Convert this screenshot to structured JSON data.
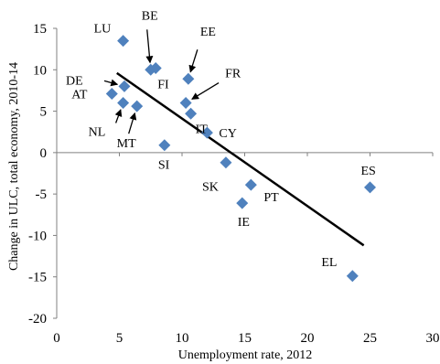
{
  "chart_data": {
    "type": "scatter",
    "title": "",
    "xlabel": "Unemployment rate, 2012",
    "ylabel": "Change in ULC, total economy, 2010-14",
    "xlim": [
      0,
      30
    ],
    "ylim": [
      -20,
      15
    ],
    "x_ticks": [
      0,
      5,
      10,
      15,
      20,
      25,
      30
    ],
    "y_ticks": [
      15,
      10,
      5,
      0,
      -5,
      -10,
      -15,
      -20
    ],
    "grid": false,
    "legend": "none",
    "marker_color": "#4f81bd",
    "trendline_color": "#000000",
    "points": [
      {
        "label": "LU",
        "x": 5.3,
        "y": 13.5
      },
      {
        "label": "BE",
        "x": 7.5,
        "y": 10.0
      },
      {
        "label": "FI",
        "x": 7.9,
        "y": 10.2
      },
      {
        "label": "EE",
        "x": 10.5,
        "y": 8.9
      },
      {
        "label": "DE",
        "x": 5.4,
        "y": 8.0
      },
      {
        "label": "AT",
        "x": 4.4,
        "y": 7.1
      },
      {
        "label": "FR",
        "x": 10.3,
        "y": 6.0
      },
      {
        "label": "NL",
        "x": 5.3,
        "y": 6.0
      },
      {
        "label": "MT",
        "x": 6.4,
        "y": 5.6
      },
      {
        "label": "IT",
        "x": 10.7,
        "y": 4.7
      },
      {
        "label": "CY",
        "x": 12.0,
        "y": 2.4
      },
      {
        "label": "SI",
        "x": 8.6,
        "y": 0.9
      },
      {
        "label": "SK",
        "x": 13.5,
        "y": -1.2
      },
      {
        "label": "PT",
        "x": 15.5,
        "y": -3.9
      },
      {
        "label": "IE",
        "x": 14.8,
        "y": -6.1
      },
      {
        "label": "ES",
        "x": 25.0,
        "y": -4.2
      },
      {
        "label": "EL",
        "x": 23.6,
        "y": -14.9
      }
    ],
    "trendline": {
      "x": [
        4.8,
        24.5
      ],
      "y": [
        9.6,
        -11.2
      ]
    }
  }
}
